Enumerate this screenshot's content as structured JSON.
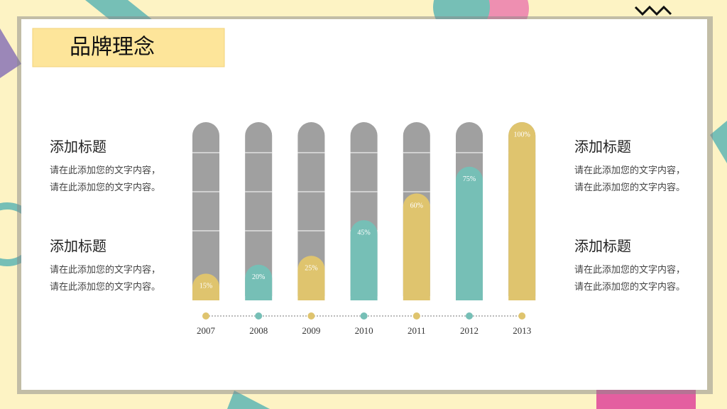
{
  "header": {
    "title": "品牌理念"
  },
  "panels": [
    {
      "title": "添加标题",
      "lines": [
        "请在此添加您的文字内容，",
        "请在此添加您的文字内容。"
      ]
    },
    {
      "title": "添加标题",
      "lines": [
        "请在此添加您的文字内容，",
        "请在此添加您的文字内容。"
      ]
    },
    {
      "title": "添加标题",
      "lines": [
        "请在此添加您的文字内容，",
        "请在此添加您的文字内容。"
      ]
    },
    {
      "title": "添加标题",
      "lines": [
        "请在此添加您的文字内容，",
        "请在此添加您的文字内容。"
      ]
    }
  ],
  "chart_data": {
    "type": "bar",
    "categories": [
      "2007",
      "2008",
      "2009",
      "2010",
      "2011",
      "2012",
      "2013"
    ],
    "values": [
      15,
      20,
      25,
      45,
      60,
      75,
      100
    ],
    "value_labels": [
      "15%",
      "20%",
      "25%",
      "45%",
      "60%",
      "75%",
      "100%"
    ],
    "colors": [
      "#dfc46e",
      "#76bfb6",
      "#dfc46e",
      "#76bfb6",
      "#dfc46e",
      "#76bfb6",
      "#dfc46e"
    ],
    "ylim": [
      0,
      100
    ]
  }
}
